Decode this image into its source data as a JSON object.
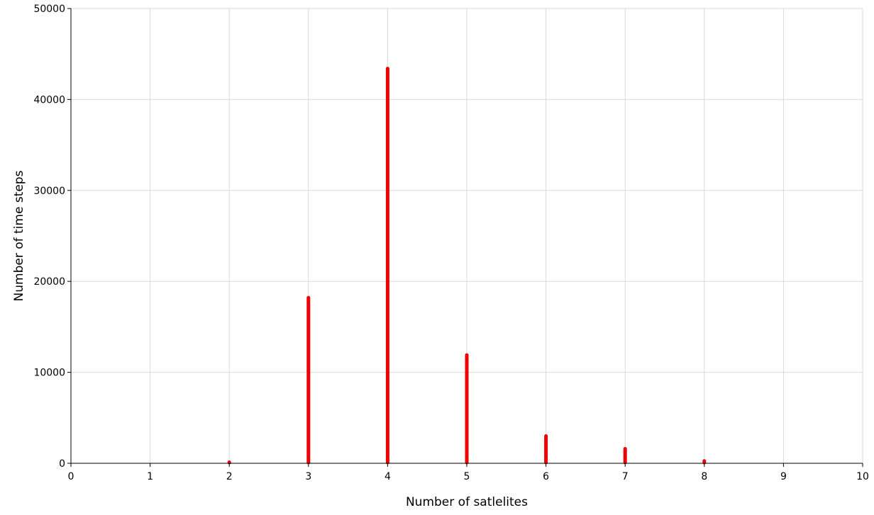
{
  "chart_data": {
    "type": "bar",
    "title": "",
    "xlabel": "Number of satlelites",
    "ylabel": "Number of time steps",
    "xlim": [
      0,
      10
    ],
    "ylim": [
      0,
      50000
    ],
    "xticks": [
      "0",
      "1",
      "2",
      "3",
      "4",
      "5",
      "6",
      "7",
      "8",
      "9",
      "10"
    ],
    "yticks": [
      "0",
      "10000",
      "20000",
      "30000",
      "40000",
      "50000"
    ],
    "grid": true,
    "legend": "none",
    "bar_color": "#ee0000",
    "x": [
      2,
      3,
      4,
      5,
      6,
      7,
      8
    ],
    "values": [
      50,
      18200,
      43400,
      11900,
      3000,
      1600,
      250
    ]
  }
}
